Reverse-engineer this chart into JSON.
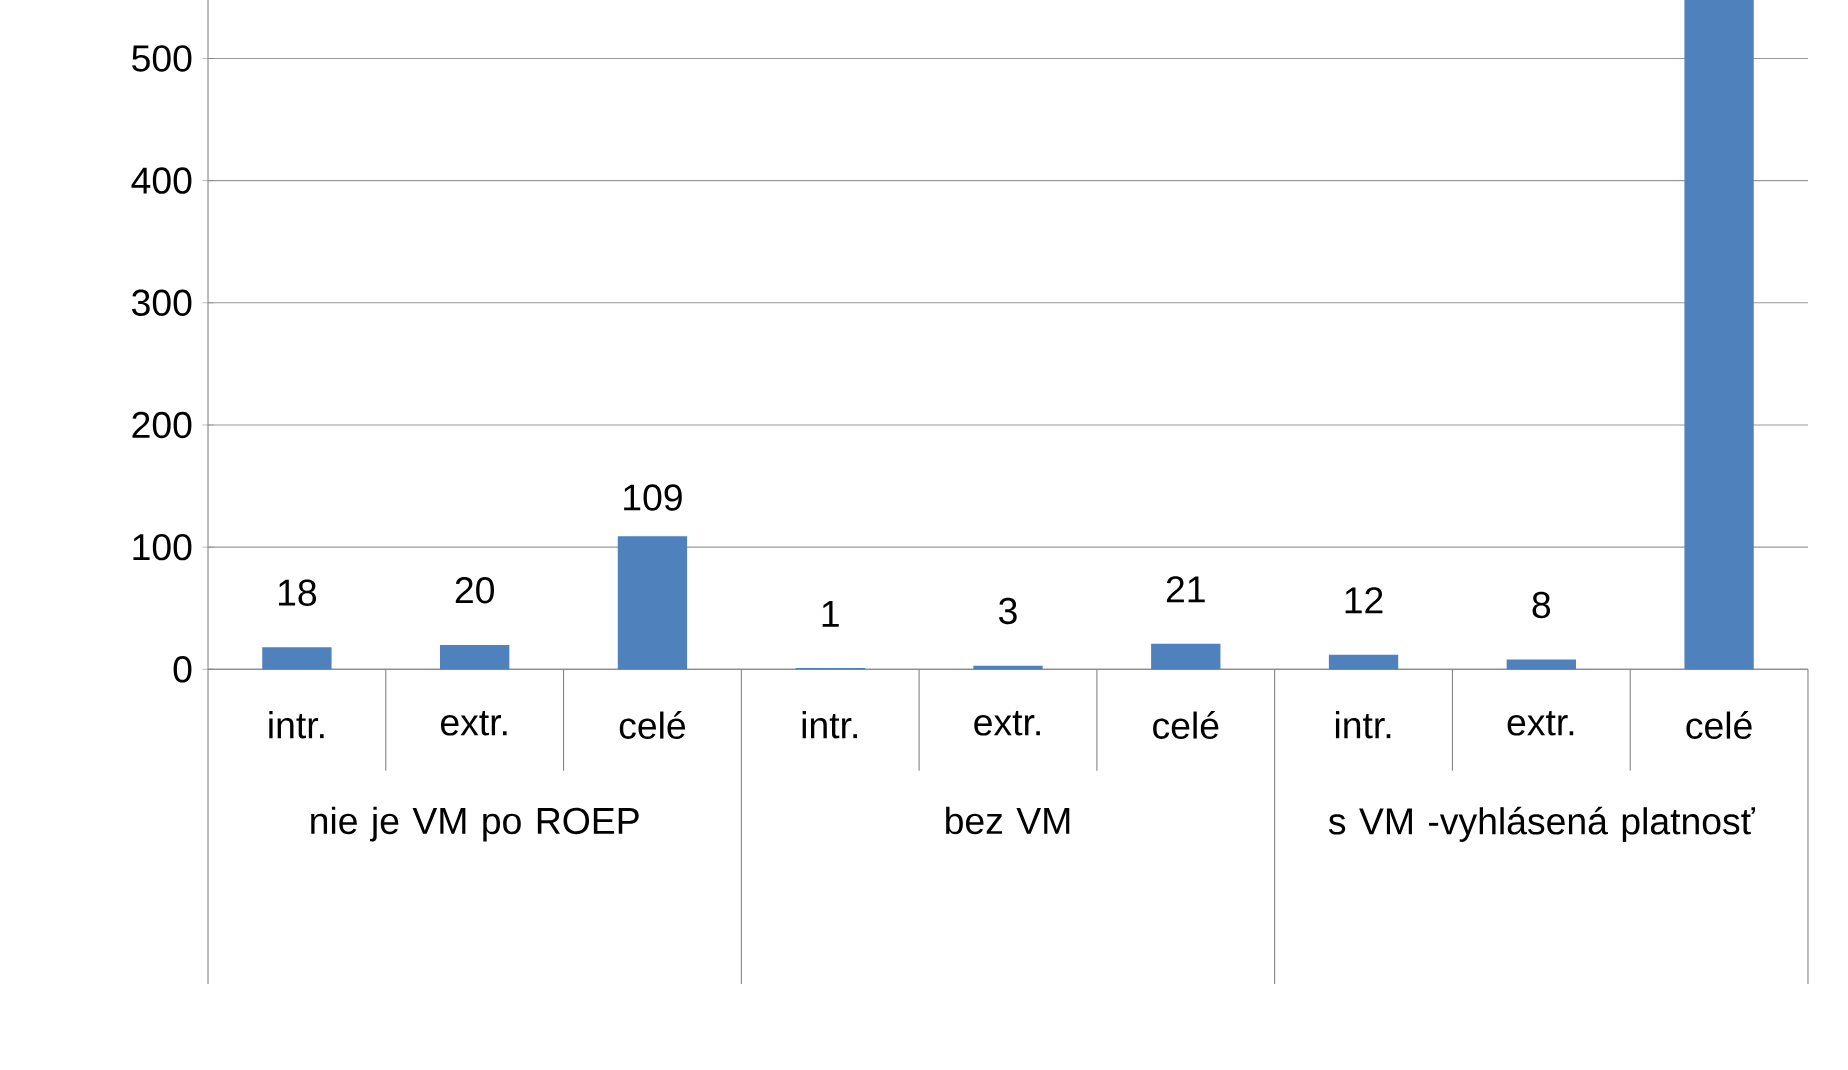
{
  "chart_data": {
    "type": "bar",
    "categories": [
      "intr.",
      "extr.",
      "celé",
      "intr.",
      "extr.",
      "celé",
      "intr.",
      "extr.",
      "celé"
    ],
    "values": [
      18,
      20,
      109,
      1,
      3,
      21,
      12,
      8,
      550
    ],
    "value_labels": [
      "18",
      "20",
      "109",
      "1",
      "3",
      "21",
      "12",
      "8",
      null
    ],
    "color": "#4f81bd",
    "ylim": [
      0,
      550
    ],
    "yticks": [
      0,
      100,
      200,
      300,
      400,
      500
    ],
    "grid": "y",
    "annotations": [
      "nie je VM po ROEP",
      "bez VM",
      "s VM -vyhlásená platnosť"
    ]
  }
}
